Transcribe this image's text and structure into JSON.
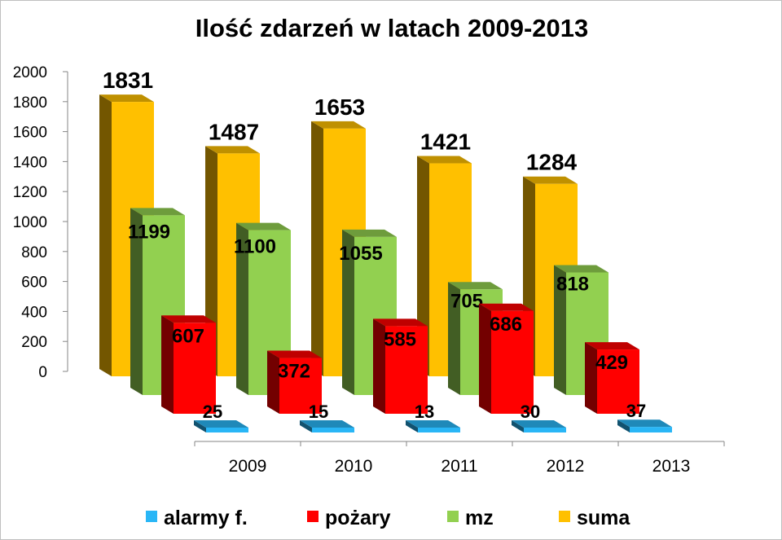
{
  "chart_data": {
    "type": "bar",
    "title": "Ilość zdarzeń w latach 2009-2013",
    "categories": [
      "2009",
      "2010",
      "2011",
      "2012",
      "2013"
    ],
    "series": [
      {
        "name": "alarmy f.",
        "values": [
          25,
          15,
          13,
          30,
          37
        ],
        "color": "#29b6f6"
      },
      {
        "name": "pożary",
        "values": [
          607,
          372,
          585,
          686,
          429
        ],
        "color": "#ff0000"
      },
      {
        "name": "mz",
        "values": [
          1199,
          1100,
          1055,
          705,
          818
        ],
        "color": "#92d050"
      },
      {
        "name": "suma",
        "values": [
          1831,
          1487,
          1653,
          1421,
          1284
        ],
        "color": "#ffc000"
      }
    ],
    "yticks": [
      "0",
      "200",
      "400",
      "600",
      "800",
      "1000",
      "1200",
      "1400",
      "1600",
      "1800",
      "2000"
    ],
    "ylim": [
      0,
      2000
    ],
    "legend_position": "bottom",
    "grid": false,
    "style": "3d-clustered-bar"
  }
}
